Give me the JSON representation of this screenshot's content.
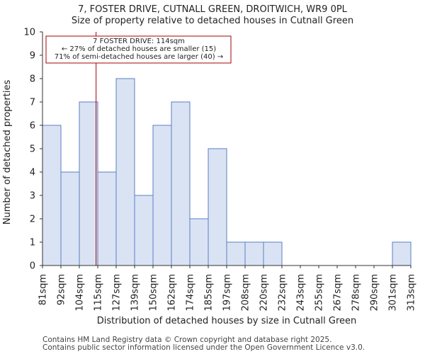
{
  "chart_data": {
    "type": "bar",
    "title_lines": [
      "7, FOSTER DRIVE, CUTNALL GREEN, DROITWICH, WR9 0PL",
      "Size of property relative to detached houses in Cutnall Green"
    ],
    "xlabel": "Distribution of detached houses by size in Cutnall Green",
    "ylabel": "Number of detached properties",
    "ylim": [
      0,
      10
    ],
    "yticks": [
      0,
      1,
      2,
      3,
      4,
      5,
      6,
      7,
      8,
      9,
      10
    ],
    "bin_labels": [
      "81sqm",
      "92sqm",
      "104sqm",
      "115sqm",
      "127sqm",
      "139sqm",
      "150sqm",
      "162sqm",
      "174sqm",
      "185sqm",
      "197sqm",
      "208sqm",
      "220sqm",
      "232sqm",
      "243sqm",
      "255sqm",
      "267sqm",
      "278sqm",
      "290sqm",
      "301sqm",
      "313sqm"
    ],
    "values": [
      6,
      4,
      7,
      4,
      8,
      3,
      6,
      7,
      2,
      5,
      1,
      1,
      1,
      0,
      0,
      0,
      0,
      0,
      0,
      1
    ],
    "marker": {
      "value": 114,
      "unit": "sqm",
      "color": "#aa0000"
    },
    "annotation_lines": [
      "7 FOSTER DRIVE: 114sqm",
      "← 27% of detached houses are smaller (15)",
      "71% of semi-detached houses are larger (40) →"
    ],
    "grid": false,
    "bar_fill": "#dae3f3",
    "bar_edge": "#5b7fc6"
  },
  "footer_lines": [
    "Contains HM Land Registry data © Crown copyright and database right 2025.",
    "Contains public sector information licensed under the Open Government Licence v3.0."
  ]
}
